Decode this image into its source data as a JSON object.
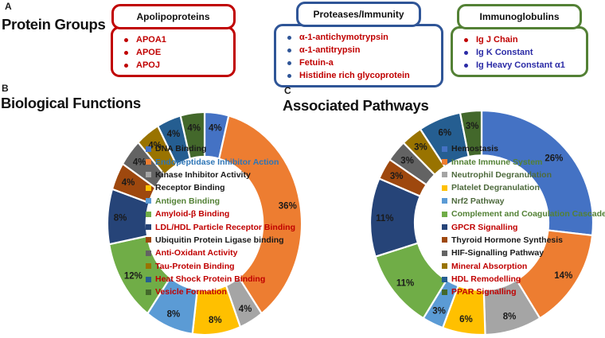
{
  "panels": {
    "a": {
      "letter": "A",
      "title": "Protein Groups",
      "groups": [
        {
          "title": "Apolipoproteins",
          "border_color": "#C00000",
          "items": [
            {
              "text": "APOA1",
              "color": "#C00000",
              "bullet_color": "#C00000"
            },
            {
              "text": "APOE",
              "color": "#C00000",
              "bullet_color": "#C00000"
            },
            {
              "text": "APOJ",
              "color": "#C00000",
              "bullet_color": "#C00000"
            }
          ]
        },
        {
          "title": "Proteases/Immunity",
          "border_color": "#2F5597",
          "items": [
            {
              "text": "α-1-antichymotrypsin",
              "color": "#C00000",
              "bullet_color": "#2F5597"
            },
            {
              "text": "α-1-antitrypsin",
              "color": "#C00000",
              "bullet_color": "#2F5597"
            },
            {
              "text": "Fetuin-a",
              "color": "#C00000",
              "bullet_color": "#2F5597"
            },
            {
              "text": "Histidine rich glycoprotein",
              "color": "#C00000",
              "bullet_color": "#2F5597"
            }
          ]
        },
        {
          "title": "Immunoglobulins",
          "border_color": "#538135",
          "items": [
            {
              "text": "Ig J Chain",
              "color": "#C00000",
              "bullet_color": "#C00000"
            },
            {
              "text": "Ig K Constant",
              "color": "#2B2BA6",
              "bullet_color": "#2B2BA6"
            },
            {
              "text": "Ig Heavy Constant α1",
              "color": "#2B2BA6",
              "bullet_color": "#2B2BA6"
            }
          ]
        }
      ]
    },
    "b": {
      "letter": "B",
      "title": "Biological Functions"
    },
    "c": {
      "letter": "C",
      "title": "Associated Pathways"
    }
  },
  "chart_data": [
    {
      "type": "pie",
      "subtype": "donut",
      "title": "Biological Functions",
      "start": "top",
      "direction": "clockwise",
      "legend_position": "center",
      "slices": [
        {
          "label": "DNA Binding",
          "value": 4,
          "pct_label": "4%",
          "color": "#4472C4",
          "legend_text_color": "#1a1a1a"
        },
        {
          "label": "Endopeptidase Inhibitor Action",
          "value": 36,
          "pct_label": "36%",
          "color": "#ED7D31",
          "legend_text_color": "#2E75B6"
        },
        {
          "label": "Kinase Inhibitor Activity",
          "value": 4,
          "pct_label": "4%",
          "color": "#A5A5A5",
          "legend_text_color": "#1a1a1a"
        },
        {
          "label": "Receptor Binding",
          "value": 8,
          "pct_label": "8%",
          "color": "#FFC000",
          "legend_text_color": "#1a1a1a"
        },
        {
          "label": "Antigen Binding",
          "value": 8,
          "pct_label": "8%",
          "color": "#5B9BD5",
          "legend_text_color": "#538135"
        },
        {
          "label": "Amyloid-β Binding",
          "value": 12,
          "pct_label": "12%",
          "color": "#70AD47",
          "legend_text_color": "#C00000"
        },
        {
          "label": "LDL/HDL Particle Receptor Binding",
          "value": 8,
          "pct_label": "8%",
          "color": "#264478",
          "legend_text_color": "#C00000"
        },
        {
          "label": "Ubiquitin Protein Ligase binding",
          "value": 4,
          "pct_label": "4%",
          "color": "#9E480E",
          "legend_text_color": "#1a1a1a"
        },
        {
          "label": "Anti-Oxidant Activity",
          "value": 4,
          "pct_label": "4%",
          "color": "#636363",
          "legend_text_color": "#C00000"
        },
        {
          "label": "Tau-Protein Binding",
          "value": 4,
          "pct_label": "4%",
          "color": "#997300",
          "legend_text_color": "#C00000"
        },
        {
          "label": "Heat Shock Protein Binding",
          "value": 4,
          "pct_label": "4%",
          "color": "#255E91",
          "legend_text_color": "#C00000"
        },
        {
          "label": "Vesicle Formation",
          "value": 4,
          "pct_label": "4%",
          "color": "#43682B",
          "legend_text_color": "#C00000"
        }
      ]
    },
    {
      "type": "pie",
      "subtype": "donut",
      "title": "Associated Pathways",
      "start": "top",
      "direction": "clockwise",
      "legend_position": "center",
      "slices": [
        {
          "label": "Hemostasis",
          "value": 26,
          "pct_label": "26%",
          "color": "#4472C4",
          "legend_text_color": "#1a1a1a"
        },
        {
          "label": "Innate Immune System",
          "value": 14,
          "pct_label": "14%",
          "color": "#ED7D31",
          "legend_text_color": "#538135"
        },
        {
          "label": "Neutrophil Degranulation",
          "value": 8,
          "pct_label": "8%",
          "color": "#A5A5A5",
          "legend_text_color": "#4e6a3d"
        },
        {
          "label": "Platelet Degranulation",
          "value": 6,
          "pct_label": "6%",
          "color": "#FFC000",
          "legend_text_color": "#4e6a3d"
        },
        {
          "label": "Nrf2 Pathway",
          "value": 3,
          "pct_label": "3%",
          "color": "#5B9BD5",
          "legend_text_color": "#4e6a3d"
        },
        {
          "label": "Complement and Coagulation Cascades",
          "value": 11,
          "pct_label": "11%",
          "color": "#70AD47",
          "legend_text_color": "#538135"
        },
        {
          "label": "GPCR Signalling",
          "value": 11,
          "pct_label": "11%",
          "color": "#264478",
          "legend_text_color": "#C00000"
        },
        {
          "label": "Thyroid Hormone Synthesis",
          "value": 3,
          "pct_label": "3%",
          "color": "#9E480E",
          "legend_text_color": "#1a1a1a"
        },
        {
          "label": "HIF-Signalling Pathway",
          "value": 3,
          "pct_label": "3%",
          "color": "#636363",
          "legend_text_color": "#1a1a1a"
        },
        {
          "label": "Mineral Absorption",
          "value": 3,
          "pct_label": "3%",
          "color": "#997300",
          "legend_text_color": "#C00000"
        },
        {
          "label": "HDL Remodelling",
          "value": 6,
          "pct_label": "6%",
          "color": "#255E91",
          "legend_text_color": "#C00000"
        },
        {
          "label": "PPAR Signalling",
          "value": 3,
          "pct_label": "3%",
          "color": "#43682B",
          "legend_text_color": "#C00000"
        }
      ]
    }
  ]
}
